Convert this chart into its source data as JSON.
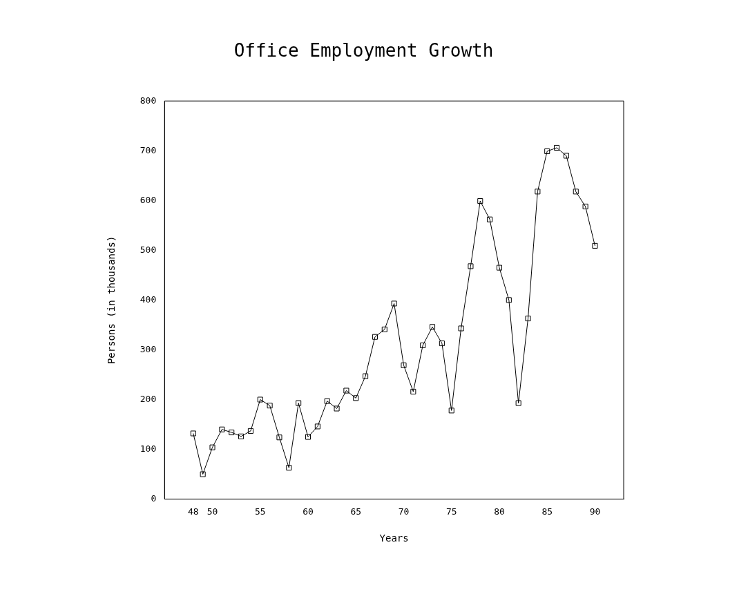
{
  "chart_data": {
    "type": "line",
    "title": "Office Employment Growth",
    "xlabel": "Years",
    "ylabel": "Persons (in thousands)",
    "x": [
      48,
      49,
      50,
      51,
      52,
      53,
      54,
      55,
      56,
      57,
      58,
      59,
      60,
      61,
      62,
      63,
      64,
      65,
      66,
      67,
      68,
      69,
      70,
      71,
      72,
      73,
      74,
      75,
      76,
      77,
      78,
      79,
      80,
      81,
      82,
      83,
      84,
      85,
      86,
      87,
      88,
      89,
      90
    ],
    "series": [
      {
        "color": "#000000",
        "values": [
          132,
          50,
          104,
          140,
          134,
          126,
          137,
          200,
          188,
          124,
          63,
          193,
          125,
          146,
          197,
          182,
          218,
          203,
          247,
          326,
          341,
          393,
          269,
          216,
          309,
          346,
          313,
          178,
          343,
          468,
          599,
          562,
          465,
          400,
          193,
          363,
          618,
          699,
          706,
          690,
          618,
          588,
          509
        ]
      }
    ],
    "xlim": [
      45,
      93
    ],
    "xticks": [
      48,
      50,
      55,
      60,
      65,
      70,
      75,
      80,
      85,
      90
    ],
    "ylim": [
      0,
      800
    ],
    "yticks": [
      0,
      100,
      200,
      300,
      400,
      500,
      600,
      700,
      800
    ],
    "grid": false,
    "legend": false,
    "marker": "square",
    "line_style": "solid"
  }
}
